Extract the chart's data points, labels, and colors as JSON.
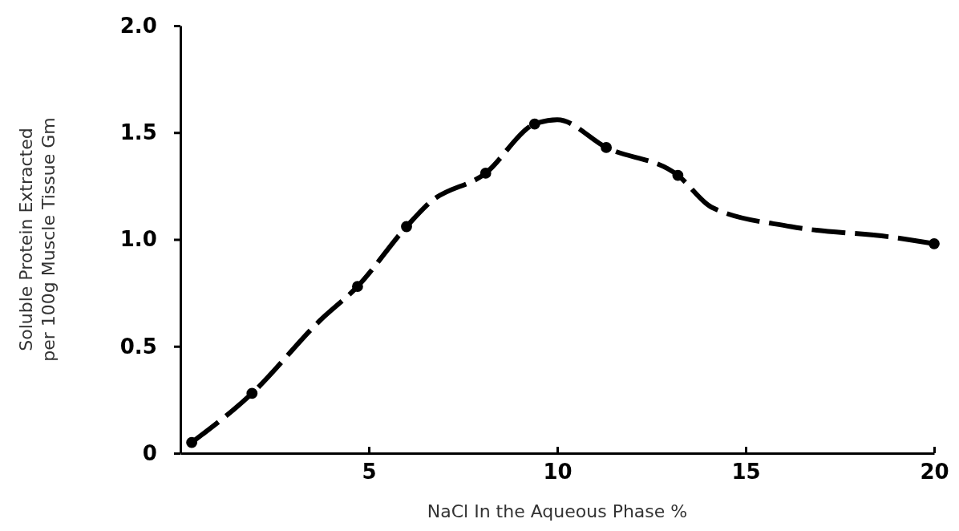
{
  "chart_data": {
    "type": "line",
    "xlabel": "NaCl In the Aqueous Phase %",
    "ylabel": "Soluble Protein Extracted\nper 100g Muscle Tissue Gm",
    "xlim": [
      0,
      20
    ],
    "xticks": [
      5,
      10,
      15,
      20
    ],
    "ylim": [
      0,
      2
    ],
    "yticks": [
      0,
      {
        "value": 0.5,
        "label": "0.5"
      },
      {
        "value": 1,
        "label": "1.0"
      },
      {
        "value": 1.5,
        "label": "1.5"
      },
      {
        "value": 2,
        "label": "2.0"
      }
    ],
    "grid": false,
    "series": [
      {
        "color": "#000000",
        "line_style": "dashed",
        "marker": "none",
        "x": [
          0.3,
          1.9,
          3.7,
          4.7,
          6.0,
          6.6,
          8.1,
          9.4,
          10.0,
          11.3,
          13.2,
          14.1,
          16.2,
          18.9,
          20
        ],
        "values": [
          0.05,
          0.28,
          0.62,
          0.78,
          1.06,
          1.17,
          1.31,
          1.54,
          1.56,
          1.43,
          1.3,
          1.15,
          1.06,
          1.01,
          0.98
        ]
      },
      {
        "type": "scatter",
        "color": "#000000",
        "marker": "circle",
        "x": [
          0.3,
          1.9,
          4.7,
          6.0,
          8.1,
          9.4,
          11.3,
          13.2,
          20
        ],
        "values": [
          0.05,
          0.28,
          0.78,
          1.06,
          1.31,
          1.54,
          1.43,
          1.3,
          0.98
        ]
      }
    ]
  }
}
